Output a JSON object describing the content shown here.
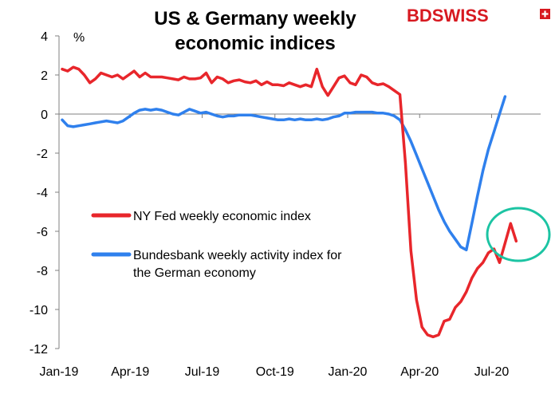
{
  "chart_data": {
    "type": "line",
    "title_lines": [
      "US & Germany weekly",
      "economic indices"
    ],
    "unit_label": "%",
    "logo": "BDSWISS",
    "ylim": [
      -12,
      4
    ],
    "y_ticks": [
      4,
      2,
      0,
      -2,
      -4,
      -6,
      -8,
      -10,
      -12
    ],
    "x_range": [
      "2019-01-01",
      "2020-09-01"
    ],
    "x_ticks": [
      {
        "label": "Jan-19",
        "date": "2019-01-01"
      },
      {
        "label": "Apr-19",
        "date": "2019-04-01"
      },
      {
        "label": "Jul-19",
        "date": "2019-07-01"
      },
      {
        "label": "Oct-19",
        "date": "2019-10-01"
      },
      {
        "label": "Jan-20",
        "date": "2020-01-01"
      },
      {
        "label": "Apr-20",
        "date": "2020-04-01"
      },
      {
        "label": "Jul-20",
        "date": "2020-07-01"
      }
    ],
    "grid": false,
    "series": [
      {
        "name": "NY Fed weekly economic index",
        "color": "#e8262b",
        "points": [
          [
            "2019-01-05",
            2.3
          ],
          [
            "2019-01-12",
            2.2
          ],
          [
            "2019-01-19",
            2.4
          ],
          [
            "2019-01-26",
            2.3
          ],
          [
            "2019-02-02",
            2.0
          ],
          [
            "2019-02-09",
            1.6
          ],
          [
            "2019-02-16",
            1.8
          ],
          [
            "2019-02-23",
            2.1
          ],
          [
            "2019-03-02",
            2.0
          ],
          [
            "2019-03-09",
            1.9
          ],
          [
            "2019-03-16",
            2.0
          ],
          [
            "2019-03-23",
            1.8
          ],
          [
            "2019-03-30",
            2.0
          ],
          [
            "2019-04-06",
            2.2
          ],
          [
            "2019-04-13",
            1.9
          ],
          [
            "2019-04-20",
            2.1
          ],
          [
            "2019-04-27",
            1.9
          ],
          [
            "2019-05-04",
            1.9
          ],
          [
            "2019-05-11",
            1.9
          ],
          [
            "2019-05-18",
            1.85
          ],
          [
            "2019-05-25",
            1.8
          ],
          [
            "2019-06-01",
            1.75
          ],
          [
            "2019-06-08",
            1.9
          ],
          [
            "2019-06-15",
            1.8
          ],
          [
            "2019-06-22",
            1.8
          ],
          [
            "2019-06-29",
            1.85
          ],
          [
            "2019-07-06",
            2.1
          ],
          [
            "2019-07-13",
            1.6
          ],
          [
            "2019-07-20",
            1.9
          ],
          [
            "2019-07-27",
            1.8
          ],
          [
            "2019-08-03",
            1.6
          ],
          [
            "2019-08-10",
            1.7
          ],
          [
            "2019-08-17",
            1.75
          ],
          [
            "2019-08-24",
            1.65
          ],
          [
            "2019-08-31",
            1.6
          ],
          [
            "2019-09-07",
            1.7
          ],
          [
            "2019-09-14",
            1.5
          ],
          [
            "2019-09-21",
            1.65
          ],
          [
            "2019-09-28",
            1.5
          ],
          [
            "2019-10-05",
            1.5
          ],
          [
            "2019-10-12",
            1.45
          ],
          [
            "2019-10-19",
            1.6
          ],
          [
            "2019-10-26",
            1.5
          ],
          [
            "2019-11-02",
            1.4
          ],
          [
            "2019-11-09",
            1.5
          ],
          [
            "2019-11-16",
            1.4
          ],
          [
            "2019-11-23",
            2.3
          ],
          [
            "2019-11-30",
            1.4
          ],
          [
            "2019-12-07",
            0.95
          ],
          [
            "2019-12-14",
            1.4
          ],
          [
            "2019-12-21",
            1.85
          ],
          [
            "2019-12-28",
            1.95
          ],
          [
            "2020-01-04",
            1.6
          ],
          [
            "2020-01-11",
            1.5
          ],
          [
            "2020-01-18",
            2.0
          ],
          [
            "2020-01-25",
            1.9
          ],
          [
            "2020-02-01",
            1.6
          ],
          [
            "2020-02-08",
            1.5
          ],
          [
            "2020-02-15",
            1.55
          ],
          [
            "2020-02-22",
            1.4
          ],
          [
            "2020-02-29",
            1.2
          ],
          [
            "2020-03-07",
            1.0
          ],
          [
            "2020-03-14",
            -2.5
          ],
          [
            "2020-03-21",
            -7.0
          ],
          [
            "2020-03-28",
            -9.5
          ],
          [
            "2020-04-04",
            -10.9
          ],
          [
            "2020-04-11",
            -11.3
          ],
          [
            "2020-04-18",
            -11.4
          ],
          [
            "2020-04-25",
            -11.3
          ],
          [
            "2020-05-02",
            -10.6
          ],
          [
            "2020-05-09",
            -10.5
          ],
          [
            "2020-05-16",
            -9.9
          ],
          [
            "2020-05-23",
            -9.6
          ],
          [
            "2020-05-30",
            -9.1
          ],
          [
            "2020-06-06",
            -8.4
          ],
          [
            "2020-06-13",
            -7.9
          ],
          [
            "2020-06-20",
            -7.6
          ],
          [
            "2020-06-27",
            -7.1
          ],
          [
            "2020-07-04",
            -6.9
          ],
          [
            "2020-07-11",
            -7.6
          ],
          [
            "2020-07-18",
            -6.6
          ],
          [
            "2020-07-25",
            -5.6
          ],
          [
            "2020-08-01",
            -6.5
          ]
        ]
      },
      {
        "name": "Bundesbank weekly activity index for the German economy",
        "color": "#2f80ed",
        "points": [
          [
            "2019-01-05",
            -0.3
          ],
          [
            "2019-01-12",
            -0.6
          ],
          [
            "2019-01-19",
            -0.65
          ],
          [
            "2019-01-26",
            -0.6
          ],
          [
            "2019-02-02",
            -0.55
          ],
          [
            "2019-02-09",
            -0.5
          ],
          [
            "2019-02-16",
            -0.45
          ],
          [
            "2019-02-23",
            -0.4
          ],
          [
            "2019-03-02",
            -0.35
          ],
          [
            "2019-03-09",
            -0.4
          ],
          [
            "2019-03-16",
            -0.45
          ],
          [
            "2019-03-23",
            -0.35
          ],
          [
            "2019-03-30",
            -0.15
          ],
          [
            "2019-04-06",
            0.05
          ],
          [
            "2019-04-13",
            0.2
          ],
          [
            "2019-04-20",
            0.25
          ],
          [
            "2019-04-27",
            0.2
          ],
          [
            "2019-05-04",
            0.25
          ],
          [
            "2019-05-11",
            0.2
          ],
          [
            "2019-05-18",
            0.1
          ],
          [
            "2019-05-25",
            0.0
          ],
          [
            "2019-06-01",
            -0.05
          ],
          [
            "2019-06-08",
            0.1
          ],
          [
            "2019-06-15",
            0.25
          ],
          [
            "2019-06-22",
            0.15
          ],
          [
            "2019-06-29",
            0.05
          ],
          [
            "2019-07-06",
            0.1
          ],
          [
            "2019-07-13",
            0.0
          ],
          [
            "2019-07-20",
            -0.1
          ],
          [
            "2019-07-27",
            -0.15
          ],
          [
            "2019-08-03",
            -0.1
          ],
          [
            "2019-08-10",
            -0.1
          ],
          [
            "2019-08-17",
            -0.05
          ],
          [
            "2019-08-24",
            -0.05
          ],
          [
            "2019-08-31",
            -0.05
          ],
          [
            "2019-09-07",
            -0.1
          ],
          [
            "2019-09-14",
            -0.15
          ],
          [
            "2019-09-21",
            -0.2
          ],
          [
            "2019-09-28",
            -0.25
          ],
          [
            "2019-10-05",
            -0.3
          ],
          [
            "2019-10-12",
            -0.3
          ],
          [
            "2019-10-19",
            -0.25
          ],
          [
            "2019-10-26",
            -0.3
          ],
          [
            "2019-11-02",
            -0.25
          ],
          [
            "2019-11-09",
            -0.3
          ],
          [
            "2019-11-16",
            -0.3
          ],
          [
            "2019-11-23",
            -0.25
          ],
          [
            "2019-11-30",
            -0.3
          ],
          [
            "2019-12-07",
            -0.25
          ],
          [
            "2019-12-14",
            -0.15
          ],
          [
            "2019-12-21",
            -0.1
          ],
          [
            "2019-12-28",
            0.05
          ],
          [
            "2020-01-04",
            0.05
          ],
          [
            "2020-01-11",
            0.1
          ],
          [
            "2020-01-18",
            0.1
          ],
          [
            "2020-01-25",
            0.1
          ],
          [
            "2020-02-01",
            0.1
          ],
          [
            "2020-02-08",
            0.05
          ],
          [
            "2020-02-15",
            0.05
          ],
          [
            "2020-02-22",
            0.0
          ],
          [
            "2020-02-29",
            -0.1
          ],
          [
            "2020-03-07",
            -0.3
          ],
          [
            "2020-03-14",
            -0.8
          ],
          [
            "2020-03-21",
            -1.4
          ],
          [
            "2020-03-28",
            -2.1
          ],
          [
            "2020-04-04",
            -2.8
          ],
          [
            "2020-04-11",
            -3.5
          ],
          [
            "2020-04-18",
            -4.2
          ],
          [
            "2020-04-25",
            -4.9
          ],
          [
            "2020-05-02",
            -5.5
          ],
          [
            "2020-05-09",
            -6.0
          ],
          [
            "2020-05-16",
            -6.4
          ],
          [
            "2020-05-23",
            -6.8
          ],
          [
            "2020-05-30",
            -6.95
          ],
          [
            "2020-06-06",
            -5.6
          ],
          [
            "2020-06-13",
            -4.2
          ],
          [
            "2020-06-20",
            -2.9
          ],
          [
            "2020-06-27",
            -1.8
          ],
          [
            "2020-07-04",
            -0.9
          ],
          [
            "2020-07-11",
            0.0
          ],
          [
            "2020-07-18",
            0.9
          ]
        ]
      }
    ]
  }
}
